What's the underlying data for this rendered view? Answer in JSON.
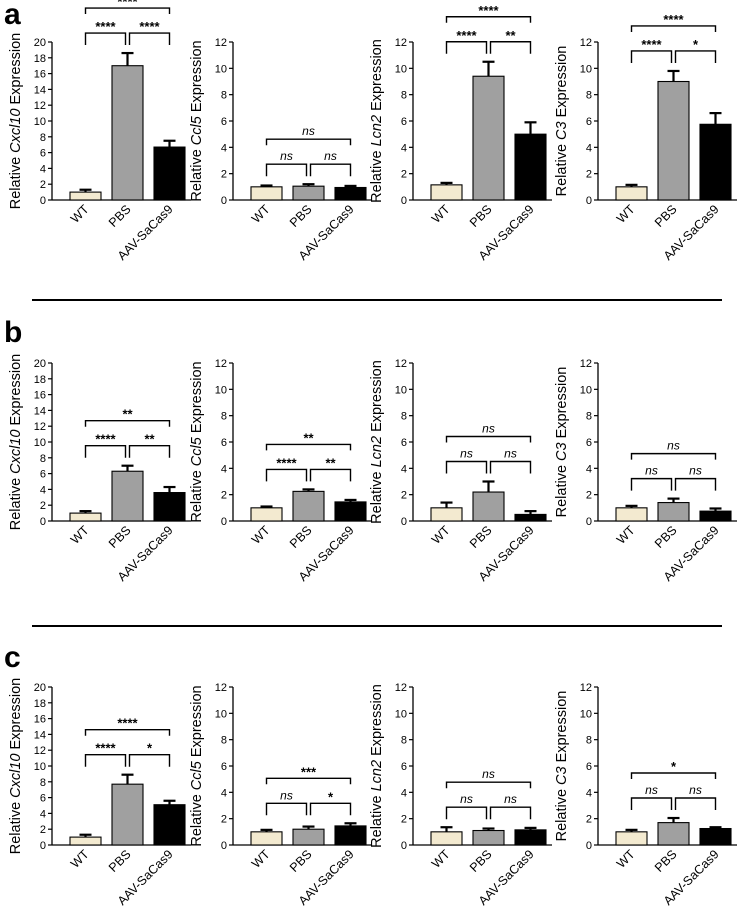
{
  "panel_labels": [
    "a",
    "b",
    "c"
  ],
  "colors": {
    "WT": "#f3ead0",
    "PBS": "#a0a0a0",
    "AAV-SaCas9": "#000000"
  },
  "chart_data": [
    {
      "panel": "a",
      "type": "bar",
      "gene": "Cxcl10",
      "ylabel": {
        "prefix": "Relative ",
        "gene": "Cxcl10",
        "suffix": " Expression"
      },
      "categories": [
        "WT",
        "PBS",
        "AAV-SaCas9"
      ],
      "values": [
        1.0,
        17.0,
        6.7
      ],
      "errors": [
        0.3,
        1.6,
        0.8
      ],
      "ylim": [
        0,
        20
      ],
      "yticks": [
        0,
        2,
        4,
        6,
        8,
        10,
        12,
        14,
        16,
        18,
        20
      ],
      "comparisons": [
        {
          "pair": [
            0,
            1
          ],
          "label": "****"
        },
        {
          "pair": [
            1,
            2
          ],
          "label": "****"
        },
        {
          "pair": [
            0,
            2
          ],
          "label": "****"
        }
      ]
    },
    {
      "panel": "a",
      "type": "bar",
      "gene": "Ccl5",
      "ylabel": {
        "prefix": "Relative ",
        "gene": "Ccl5",
        "suffix": " Expression"
      },
      "categories": [
        "WT",
        "PBS",
        "AAV-SaCas9"
      ],
      "values": [
        1.0,
        1.05,
        0.95
      ],
      "errors": [
        0.1,
        0.15,
        0.12
      ],
      "ylim": [
        0,
        12
      ],
      "yticks": [
        0,
        2,
        4,
        6,
        8,
        10,
        12
      ],
      "comparisons": [
        {
          "pair": [
            0,
            1
          ],
          "label": "ns"
        },
        {
          "pair": [
            1,
            2
          ],
          "label": "ns"
        },
        {
          "pair": [
            0,
            2
          ],
          "label": "ns"
        }
      ]
    },
    {
      "panel": "a",
      "type": "bar",
      "gene": "Lcn2",
      "ylabel": {
        "prefix": "Relative ",
        "gene": "Lcn2",
        "suffix": " Expression"
      },
      "categories": [
        "WT",
        "PBS",
        "AAV-SaCas9"
      ],
      "values": [
        1.15,
        9.4,
        5.0
      ],
      "errors": [
        0.15,
        1.1,
        0.9
      ],
      "ylim": [
        0,
        12
      ],
      "yticks": [
        0,
        2,
        4,
        6,
        8,
        10,
        12
      ],
      "comparisons": [
        {
          "pair": [
            0,
            1
          ],
          "label": "****"
        },
        {
          "pair": [
            1,
            2
          ],
          "label": "**"
        },
        {
          "pair": [
            0,
            2
          ],
          "label": "****"
        }
      ]
    },
    {
      "panel": "a",
      "type": "bar",
      "gene": "C3",
      "ylabel": {
        "prefix": "Relative ",
        "gene": "C3",
        "suffix": " Expression"
      },
      "categories": [
        "WT",
        "PBS",
        "AAV-SaCas9"
      ],
      "values": [
        1.0,
        9.0,
        5.75
      ],
      "errors": [
        0.15,
        0.8,
        0.85
      ],
      "ylim": [
        0,
        12
      ],
      "yticks": [
        0,
        2,
        4,
        6,
        8,
        10,
        12
      ],
      "comparisons": [
        {
          "pair": [
            0,
            1
          ],
          "label": "****"
        },
        {
          "pair": [
            1,
            2
          ],
          "label": "*"
        },
        {
          "pair": [
            0,
            2
          ],
          "label": "****"
        }
      ]
    },
    {
      "panel": "b",
      "type": "bar",
      "gene": "Cxcl10",
      "ylabel": {
        "prefix": "Relative ",
        "gene": "Cxcl10",
        "suffix": " Expression"
      },
      "categories": [
        "WT",
        "PBS",
        "AAV-SaCas9"
      ],
      "values": [
        1.0,
        6.3,
        3.6
      ],
      "errors": [
        0.25,
        0.7,
        0.7
      ],
      "ylim": [
        0,
        20
      ],
      "yticks": [
        0,
        2,
        4,
        6,
        8,
        10,
        12,
        14,
        16,
        18,
        20
      ],
      "comparisons": [
        {
          "pair": [
            0,
            1
          ],
          "label": "****"
        },
        {
          "pair": [
            1,
            2
          ],
          "label": "**"
        },
        {
          "pair": [
            0,
            2
          ],
          "label": "**"
        }
      ]
    },
    {
      "panel": "b",
      "type": "bar",
      "gene": "Ccl5",
      "ylabel": {
        "prefix": "Relative ",
        "gene": "Ccl5",
        "suffix": " Expression"
      },
      "categories": [
        "WT",
        "PBS",
        "AAV-SaCas9"
      ],
      "values": [
        1.0,
        2.25,
        1.45
      ],
      "errors": [
        0.1,
        0.15,
        0.15
      ],
      "ylim": [
        0,
        12
      ],
      "yticks": [
        0,
        2,
        4,
        6,
        8,
        10,
        12
      ],
      "comparisons": [
        {
          "pair": [
            0,
            1
          ],
          "label": "****"
        },
        {
          "pair": [
            1,
            2
          ],
          "label": "**"
        },
        {
          "pair": [
            0,
            2
          ],
          "label": "**"
        }
      ]
    },
    {
      "panel": "b",
      "type": "bar",
      "gene": "Lcn2",
      "ylabel": {
        "prefix": "Relative ",
        "gene": "Lcn2",
        "suffix": " Expression"
      },
      "categories": [
        "WT",
        "PBS",
        "AAV-SaCas9"
      ],
      "values": [
        1.0,
        2.2,
        0.5
      ],
      "errors": [
        0.4,
        0.8,
        0.25
      ],
      "ylim": [
        0,
        12
      ],
      "yticks": [
        0,
        2,
        4,
        6,
        8,
        10,
        12
      ],
      "comparisons": [
        {
          "pair": [
            0,
            1
          ],
          "label": "ns"
        },
        {
          "pair": [
            1,
            2
          ],
          "label": "ns"
        },
        {
          "pair": [
            0,
            2
          ],
          "label": "ns"
        }
      ]
    },
    {
      "panel": "b",
      "type": "bar",
      "gene": "C3",
      "ylabel": {
        "prefix": "Relative ",
        "gene": "C3",
        "suffix": " Expression"
      },
      "categories": [
        "WT",
        "PBS",
        "AAV-SaCas9"
      ],
      "values": [
        1.0,
        1.4,
        0.75
      ],
      "errors": [
        0.15,
        0.3,
        0.2
      ],
      "ylim": [
        0,
        12
      ],
      "yticks": [
        0,
        2,
        4,
        6,
        8,
        10,
        12
      ],
      "comparisons": [
        {
          "pair": [
            0,
            1
          ],
          "label": "ns"
        },
        {
          "pair": [
            1,
            2
          ],
          "label": "ns"
        },
        {
          "pair": [
            0,
            2
          ],
          "label": "ns"
        }
      ]
    },
    {
      "panel": "c",
      "type": "bar",
      "gene": "Cxcl10",
      "ylabel": {
        "prefix": "Relative ",
        "gene": "Cxcl10",
        "suffix": " Expression"
      },
      "categories": [
        "WT",
        "PBS",
        "AAV-SaCas9"
      ],
      "values": [
        1.0,
        7.7,
        5.1
      ],
      "errors": [
        0.3,
        1.2,
        0.5
      ],
      "ylim": [
        0,
        20
      ],
      "yticks": [
        0,
        2,
        4,
        6,
        8,
        10,
        12,
        14,
        16,
        18,
        20
      ],
      "comparisons": [
        {
          "pair": [
            0,
            1
          ],
          "label": "****"
        },
        {
          "pair": [
            1,
            2
          ],
          "label": "*"
        },
        {
          "pair": [
            0,
            2
          ],
          "label": "****"
        }
      ]
    },
    {
      "panel": "c",
      "type": "bar",
      "gene": "Ccl5",
      "ylabel": {
        "prefix": "Relative ",
        "gene": "Ccl5",
        "suffix": " Expression"
      },
      "categories": [
        "WT",
        "PBS",
        "AAV-SaCas9"
      ],
      "values": [
        1.0,
        1.2,
        1.45
      ],
      "errors": [
        0.15,
        0.2,
        0.2
      ],
      "ylim": [
        0,
        12
      ],
      "yticks": [
        0,
        2,
        4,
        6,
        8,
        10,
        12
      ],
      "comparisons": [
        {
          "pair": [
            0,
            1
          ],
          "label": "ns"
        },
        {
          "pair": [
            1,
            2
          ],
          "label": "*"
        },
        {
          "pair": [
            0,
            2
          ],
          "label": "***"
        }
      ]
    },
    {
      "panel": "c",
      "type": "bar",
      "gene": "Lcn2",
      "ylabel": {
        "prefix": "Relative ",
        "gene": "Lcn2",
        "suffix": " Expression"
      },
      "categories": [
        "WT",
        "PBS",
        "AAV-SaCas9"
      ],
      "values": [
        1.0,
        1.1,
        1.15
      ],
      "errors": [
        0.35,
        0.15,
        0.15
      ],
      "ylim": [
        0,
        12
      ],
      "yticks": [
        0,
        2,
        4,
        6,
        8,
        10,
        12
      ],
      "comparisons": [
        {
          "pair": [
            0,
            1
          ],
          "label": "ns"
        },
        {
          "pair": [
            1,
            2
          ],
          "label": "ns"
        },
        {
          "pair": [
            0,
            2
          ],
          "label": "ns"
        }
      ]
    },
    {
      "panel": "c",
      "type": "bar",
      "gene": "C3",
      "ylabel": {
        "prefix": "Relative ",
        "gene": "C3",
        "suffix": " Expression"
      },
      "categories": [
        "WT",
        "PBS",
        "AAV-SaCas9"
      ],
      "values": [
        1.0,
        1.7,
        1.25
      ],
      "errors": [
        0.15,
        0.35,
        0.1
      ],
      "ylim": [
        0,
        12
      ],
      "yticks": [
        0,
        2,
        4,
        6,
        8,
        10,
        12
      ],
      "comparisons": [
        {
          "pair": [
            0,
            1
          ],
          "label": "ns"
        },
        {
          "pair": [
            1,
            2
          ],
          "label": "ns"
        },
        {
          "pair": [
            0,
            2
          ],
          "label": "*"
        }
      ]
    }
  ]
}
